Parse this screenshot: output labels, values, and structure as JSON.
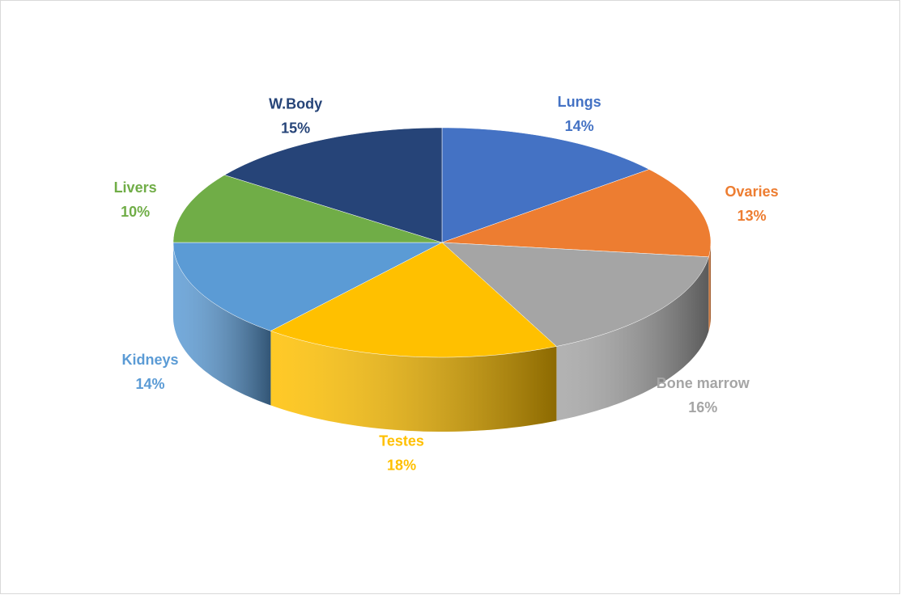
{
  "chart_data": {
    "type": "pie",
    "categories": [
      "Lungs",
      "Ovaries",
      "Bone marrow",
      "Testes",
      "Kidneys",
      "Livers",
      "W.Body"
    ],
    "values": [
      14,
      13,
      16,
      18,
      14,
      10,
      15
    ],
    "value_labels": [
      "14%",
      "13%",
      "16%",
      "18%",
      "14%",
      "10%",
      "15%"
    ],
    "colors": [
      "#4472c4",
      "#ed7d31",
      "#a5a5a5",
      "#ffc000",
      "#5b9bd5",
      "#70ad47",
      "#264478"
    ]
  }
}
